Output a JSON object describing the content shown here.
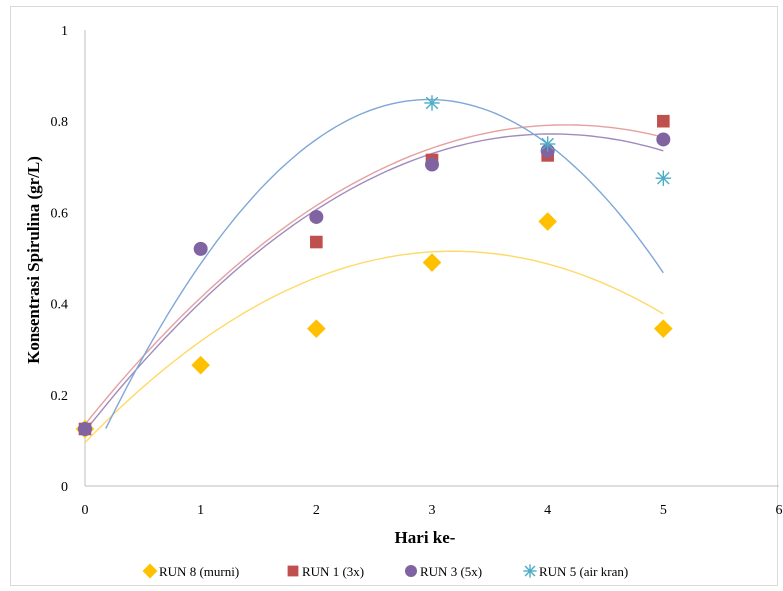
{
  "chart_data": {
    "type": "scatter",
    "xlabel": "Hari ke-",
    "ylabel": "Konsentrasi Spirulina (gr/L)",
    "xlim": [
      0,
      6
    ],
    "ylim": [
      0,
      1
    ],
    "xticks": [
      "0",
      "1",
      "2",
      "3",
      "4",
      "5",
      "6"
    ],
    "yticks": [
      "0",
      "0.2",
      "0.4",
      "0.6",
      "0.8",
      "1"
    ],
    "grid": false,
    "legend_position": "bottom",
    "trendline": "polynomial order 2",
    "series": [
      {
        "name": "RUN 8 (murni)",
        "marker": "diamond",
        "color": "#FFC000",
        "trend_color": "#FFD966",
        "x": [
          0,
          1,
          2,
          3,
          4,
          5
        ],
        "y": [
          0.125,
          0.265,
          0.345,
          0.49,
          0.58,
          0.345
        ],
        "trend_start": 0,
        "trend_coef": [
          0.095,
          0.264,
          -0.0415
        ]
      },
      {
        "name": "RUN 1 (3x)",
        "marker": "square",
        "color": "#C0504D",
        "trend_color": "#E6A0A0",
        "x": [
          0,
          2,
          3,
          4,
          5
        ],
        "y": [
          0.125,
          0.535,
          0.715,
          0.725,
          0.8
        ],
        "trend_start": 0,
        "trend_coef": [
          0.135,
          0.316,
          -0.038
        ]
      },
      {
        "name": "RUN 3 (5x)",
        "marker": "circle",
        "color": "#8064A2",
        "trend_color": "#A08BC0",
        "x": [
          0,
          1,
          2,
          3,
          4,
          5
        ],
        "y": [
          0.125,
          0.52,
          0.59,
          0.705,
          0.735,
          0.76
        ],
        "trend_start": 0,
        "trend_coef": [
          0.12,
          0.323,
          -0.04
        ]
      },
      {
        "name": "RUN 5 (air kran)",
        "marker": "asterisk",
        "color": "#4BACC6",
        "trend_color": "#7FA7D8",
        "x": [
          3,
          4,
          5
        ],
        "y": [
          0.84,
          0.75,
          0.675
        ],
        "trend_start": 0.18,
        "trend_coef": [
          0.03,
          0.55,
          -0.0925
        ]
      }
    ]
  }
}
